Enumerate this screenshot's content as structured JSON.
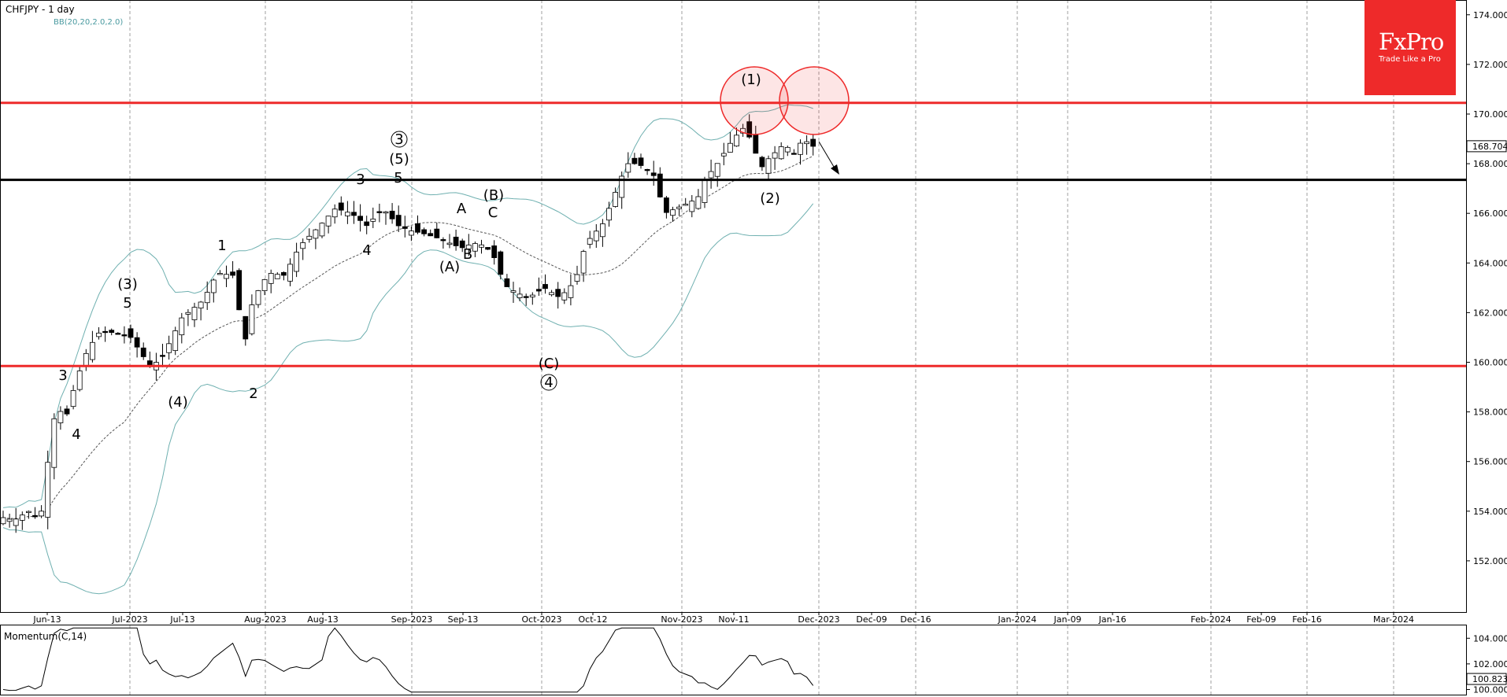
{
  "header": {
    "symbol_title": "CHFJPY - 1 day",
    "bb_label": "BB(20,20,2.0,2.0)"
  },
  "logo": {
    "brand": "FxPro",
    "tagline": "Trade Like a Pro"
  },
  "colors": {
    "resistance": "#ee2a2a",
    "support": "#000000",
    "bands": "#6fb0b0",
    "arrow_up": "#1a8f1a",
    "arrow_down": "#c0392b"
  },
  "chart_data": {
    "type": "candlestick",
    "title": "CHFJPY - 1 day",
    "ylim": [
      150.0,
      174.5
    ],
    "y_ticks": [
      "152.000",
      "154.000",
      "156.000",
      "158.000",
      "160.000",
      "162.000",
      "164.000",
      "166.000",
      "168.000",
      "170.000",
      "172.000",
      "174.000"
    ],
    "x_ticks": [
      "Jun-13",
      "Jul-2023",
      "Jul-13",
      "Aug-2023",
      "Aug-13",
      "Sep-2023",
      "Sep-13",
      "Oct-2023",
      "Oct-12",
      "Nov-2023",
      "Nov-11",
      "Dec-2023",
      "Dec-09",
      "Dec-16",
      "Jan-2024",
      "Jan-09",
      "Jan-16",
      "Feb-2024",
      "Feb-09",
      "Feb-16",
      "Mar-2024"
    ],
    "last_price": "168.704",
    "levels": [
      {
        "name": "upper-resistance",
        "value": 170.45,
        "color": "#ee2a2a"
      },
      {
        "name": "support",
        "value": 167.35,
        "color": "#000000"
      },
      {
        "name": "lower-resistance",
        "value": 159.85,
        "color": "#ee2a2a"
      }
    ],
    "wave_labels": [
      {
        "text": "3",
        "x": "Jun-09",
        "y": 159.2
      },
      {
        "text": "4",
        "x": "Jun-12",
        "y": 156.6
      },
      {
        "text": "(3)",
        "x": "Jun-29",
        "y": 162.7
      },
      {
        "text": "5",
        "x": "Jun-30",
        "y": 161.9
      },
      {
        "text": "(4)",
        "x": "Jul-11",
        "y": 158.2
      },
      {
        "text": "1",
        "x": "Jul-19",
        "y": 164.5
      },
      {
        "text": "2",
        "x": "Jul-27",
        "y": 157.9
      },
      {
        "text": "3",
        "x": "Aug-23",
        "y": 167.2
      },
      {
        "text": "4",
        "x": "Aug-23",
        "y": 164.0
      },
      {
        "text": "3",
        "x": "Aug-31",
        "y": 168.5,
        "circled": true
      },
      {
        "text": "(5)",
        "x": "Aug-31",
        "y": 167.8
      },
      {
        "text": "5",
        "x": "Aug-31",
        "y": 167.2
      },
      {
        "text": "A",
        "x": "Sep-12",
        "y": 165.7
      },
      {
        "text": "(A)",
        "x": "Sep-10",
        "y": 163.4
      },
      {
        "text": "B",
        "x": "Sep-13",
        "y": 163.8
      },
      {
        "text": "(B)",
        "x": "Sep-18",
        "y": 166.2
      },
      {
        "text": "C",
        "x": "Sep-18",
        "y": 165.4
      },
      {
        "text": "(C)",
        "x": "Oct-02",
        "y": 159.4
      },
      {
        "text": "4",
        "x": "Oct-02",
        "y": 158.7,
        "circled": true
      },
      {
        "text": "(1)",
        "x": "Nov-14",
        "y": 170.9
      },
      {
        "text": "(2)",
        "x": "Nov-17",
        "y": 165.8
      }
    ],
    "indicator": {
      "name": "Momentum(C,14)",
      "last_value": "100.823",
      "y_ticks": [
        "100.000",
        "102.000",
        "104.000"
      ]
    }
  }
}
